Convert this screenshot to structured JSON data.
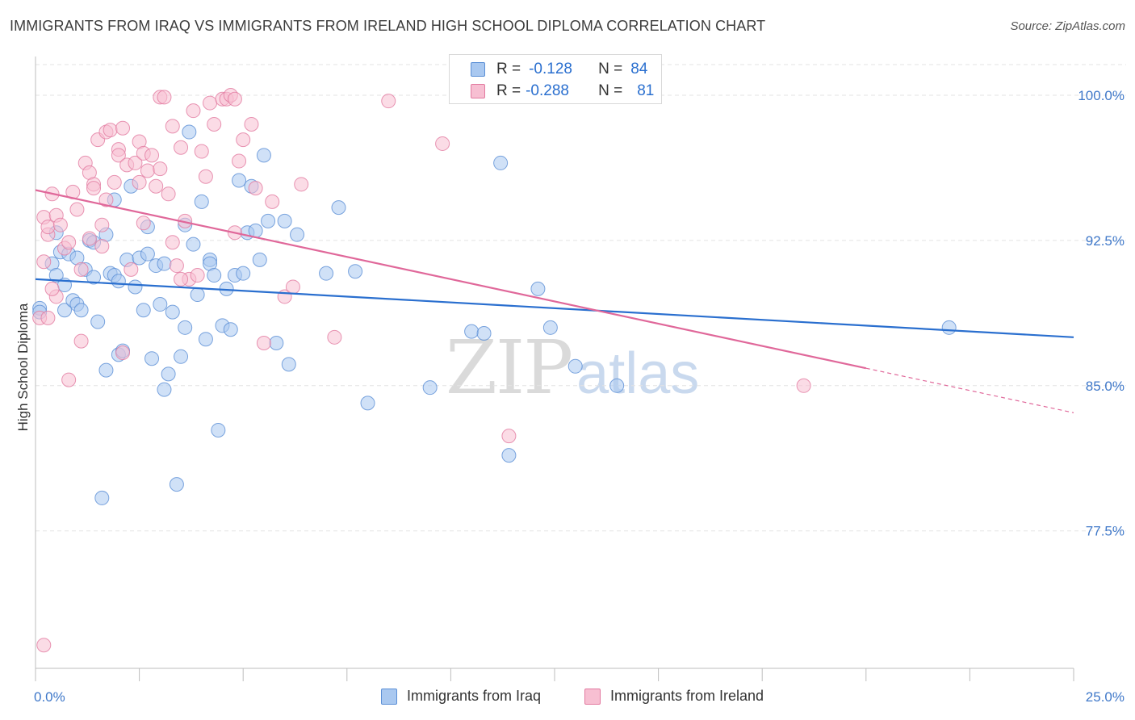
{
  "title": "IMMIGRANTS FROM IRAQ VS IMMIGRANTS FROM IRELAND HIGH SCHOOL DIPLOMA CORRELATION CHART",
  "source": "Source: ZipAtlas.com",
  "watermark": {
    "zip": "ZIP",
    "atlas": "atlas"
  },
  "legend": {
    "r_label": "R =",
    "n_label": "N =",
    "rows": [
      {
        "r": "-0.128",
        "n": "84"
      },
      {
        "r": "-0.288",
        "n": "81"
      }
    ]
  },
  "colors": {
    "blue_fill": "#a9c8f0",
    "blue_stroke": "#5b8fd6",
    "blue_line": "#2a6fcf",
    "pink_fill": "#f7bfd2",
    "pink_stroke": "#e27aa0",
    "pink_line": "#e0689a",
    "axis_text": "#3f78c9",
    "grid": "#e3e3e3"
  },
  "chart_data": {
    "type": "scatter",
    "xlabel": "",
    "ylabel": "High School Diploma",
    "xlim": [
      0,
      25
    ],
    "ylim": [
      70.4,
      102
    ],
    "x_tick_labels": [
      {
        "value": 0,
        "label": "0.0%"
      },
      {
        "value": 25,
        "label": "25.0%"
      }
    ],
    "y_tick_labels": [
      {
        "value": 100.0,
        "label": "100.0%"
      },
      {
        "value": 92.5,
        "label": "92.5%"
      },
      {
        "value": 85.0,
        "label": "85.0%"
      },
      {
        "value": 77.5,
        "label": "77.5%"
      }
    ],
    "x_minor_ticks": [
      0,
      2.5,
      5,
      7.5,
      10,
      12.5,
      15,
      17.5,
      20,
      22.5,
      25
    ],
    "grid": true,
    "series": [
      {
        "name": "Immigrants from Iraq",
        "color": "blue",
        "trend": {
          "x": [
            0,
            25
          ],
          "y": [
            90.5,
            87.5
          ],
          "dashed_from": null
        },
        "x": [
          0.1,
          0.1,
          0.4,
          0.5,
          0.5,
          0.6,
          0.7,
          0.7,
          0.8,
          0.9,
          1.0,
          1.0,
          1.1,
          1.2,
          1.3,
          1.4,
          1.4,
          1.5,
          1.6,
          1.7,
          1.7,
          1.8,
          1.9,
          1.9,
          2.0,
          2.0,
          2.1,
          2.2,
          2.3,
          2.4,
          2.5,
          2.6,
          2.7,
          2.7,
          2.8,
          2.9,
          3.0,
          3.1,
          3.1,
          3.2,
          3.3,
          3.4,
          3.5,
          3.6,
          3.6,
          3.7,
          3.8,
          3.9,
          4.0,
          4.1,
          4.2,
          4.2,
          4.3,
          4.4,
          4.5,
          4.6,
          4.7,
          4.8,
          4.9,
          5.0,
          5.1,
          5.2,
          5.3,
          5.4,
          5.5,
          5.6,
          5.8,
          6.0,
          6.1,
          6.3,
          7.0,
          7.3,
          7.7,
          8.0,
          9.5,
          10.5,
          10.8,
          11.2,
          11.4,
          12.1,
          12.4,
          13.0,
          14.0,
          22.0
        ],
        "y": [
          89.0,
          88.8,
          91.3,
          90.7,
          92.9,
          91.9,
          88.9,
          90.2,
          91.8,
          89.4,
          89.2,
          91.6,
          88.9,
          91.0,
          92.5,
          90.6,
          92.4,
          88.3,
          79.2,
          92.8,
          85.8,
          90.8,
          94.6,
          90.7,
          86.6,
          90.4,
          86.8,
          91.5,
          95.3,
          90.1,
          91.6,
          88.9,
          91.8,
          93.2,
          86.4,
          91.2,
          89.2,
          84.8,
          91.3,
          85.6,
          88.8,
          79.9,
          86.5,
          93.3,
          88.0,
          98.1,
          92.3,
          89.7,
          94.5,
          87.4,
          91.5,
          91.3,
          90.7,
          82.7,
          88.1,
          90.0,
          87.9,
          90.7,
          95.6,
          90.8,
          92.9,
          95.3,
          93.0,
          91.5,
          96.9,
          93.5,
          87.2,
          93.5,
          86.1,
          92.8,
          90.8,
          94.2,
          90.9,
          84.1,
          84.9,
          87.8,
          87.7,
          96.5,
          81.4,
          90.0,
          88.0,
          86.0,
          85.0,
          88.0
        ]
      },
      {
        "name": "Immigrants from Ireland",
        "color": "pink",
        "trend": {
          "x": [
            0,
            20.0,
            25
          ],
          "y": [
            95.1,
            85.9,
            83.6
          ],
          "dashed_from": 20.0
        },
        "x": [
          0.1,
          0.2,
          0.2,
          0.3,
          0.3,
          0.4,
          0.5,
          0.6,
          0.7,
          0.8,
          0.9,
          1.0,
          1.1,
          1.2,
          1.3,
          1.4,
          1.4,
          1.5,
          1.6,
          1.7,
          1.7,
          1.8,
          1.9,
          2.0,
          2.0,
          2.1,
          2.2,
          2.3,
          2.4,
          2.5,
          2.5,
          2.6,
          2.6,
          2.7,
          2.8,
          2.9,
          3.0,
          3.0,
          3.1,
          3.2,
          3.3,
          3.3,
          3.4,
          3.5,
          3.6,
          3.7,
          3.8,
          3.9,
          4.0,
          4.1,
          4.2,
          4.3,
          4.5,
          4.6,
          4.7,
          4.8,
          4.9,
          5.0,
          5.2,
          5.3,
          5.5,
          5.7,
          6.0,
          6.2,
          6.4,
          7.2,
          8.5,
          9.8,
          11.4,
          2.1,
          1.1,
          0.5,
          0.8,
          1.6,
          0.4,
          0.2,
          0.3,
          1.3,
          4.8,
          3.5,
          18.5
        ],
        "y": [
          88.5,
          91.4,
          93.7,
          92.8,
          93.2,
          94.9,
          93.8,
          93.3,
          92.1,
          92.4,
          95.0,
          94.1,
          91.0,
          96.5,
          96.0,
          95.4,
          95.2,
          97.7,
          92.2,
          94.6,
          98.1,
          98.2,
          95.5,
          97.2,
          96.9,
          98.3,
          96.4,
          91.0,
          96.5,
          95.5,
          97.6,
          93.4,
          97.0,
          96.1,
          96.9,
          95.3,
          99.9,
          96.2,
          99.9,
          94.9,
          98.4,
          92.4,
          91.2,
          97.3,
          93.5,
          90.5,
          99.2,
          90.7,
          97.1,
          95.8,
          99.6,
          98.5,
          99.8,
          99.8,
          100.0,
          99.8,
          96.6,
          97.7,
          98.5,
          95.2,
          87.2,
          94.5,
          89.6,
          90.1,
          95.4,
          87.5,
          99.7,
          97.5,
          82.4,
          86.7,
          87.3,
          89.6,
          85.3,
          93.3,
          90.0,
          71.6,
          88.5,
          92.6,
          92.9,
          90.5,
          85.0
        ]
      }
    ]
  },
  "bottom_legend": {
    "iraq": "Immigrants from Iraq",
    "ireland": "Immigrants from Ireland"
  }
}
